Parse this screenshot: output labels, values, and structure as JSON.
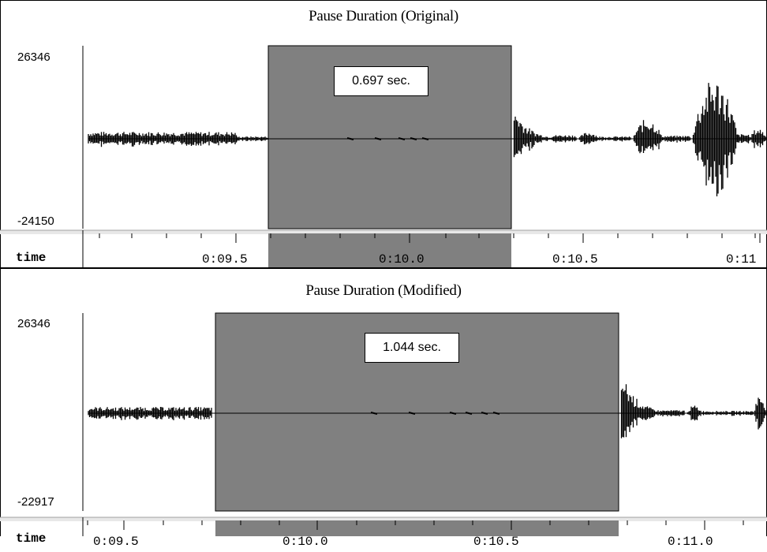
{
  "panels": [
    {
      "title": "Pause Duration (Original)",
      "ymax_label": "26346",
      "ymin_label": "-24150",
      "pause_label": "0.697 sec.",
      "time_axis_label": "time",
      "ticks": [
        "0:09.5",
        "0:10.0",
        "0:10.5",
        "0:11"
      ]
    },
    {
      "title": "Pause Duration (Modified)",
      "ymax_label": "26346",
      "ymin_label": "-22917",
      "pause_label": "1.044 sec.",
      "time_axis_label": "time",
      "ticks": [
        "0:09.5",
        "0:10.0",
        "0:10.5",
        "0:11.0"
      ]
    }
  ],
  "colors": {
    "pause_region": "#808080",
    "waveform": "#000000",
    "ruler_bg": "#e8e8e8"
  }
}
